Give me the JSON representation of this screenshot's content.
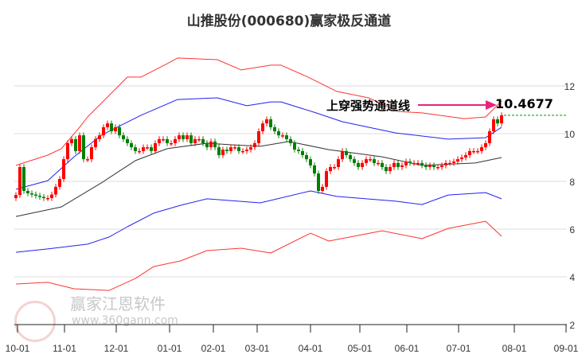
{
  "title": "山推股份(000680)赢家极反通道",
  "annotation": {
    "label": "上穿强势通道线",
    "value": "10.4677",
    "arrow_color": "#e8237a"
  },
  "watermark": {
    "brand": "赢家江恩软件",
    "url": "www.360gann.com",
    "seal": "江赢恩家"
  },
  "colors": {
    "up": "#ff0000",
    "down": "#008000",
    "outer_band": "#ff3333",
    "inner_band": "#2222ee",
    "middle": "#333333",
    "last_line": "#009900"
  },
  "chart_data": {
    "type": "candlestick",
    "title": "山推股份(000680)赢家极反通道",
    "ylim": [
      2,
      12.5
    ],
    "yticks": [
      2,
      4,
      6,
      8,
      10,
      12
    ],
    "xlim_index": [
      -0.4,
      138.4
    ],
    "xticks": [
      {
        "label": "10-01",
        "index": 0.4
      },
      {
        "label": "11-01",
        "index": 12.2
      },
      {
        "label": "12-01",
        "index": 25.2
      },
      {
        "label": "01-01",
        "index": 38.6
      },
      {
        "label": "02-01",
        "index": 49.6
      },
      {
        "label": "03-01",
        "index": 60.6
      },
      {
        "label": "04-01",
        "index": 74
      },
      {
        "label": "05-01",
        "index": 86.4
      },
      {
        "label": "06-01",
        "index": 98.2
      },
      {
        "label": "07-01",
        "index": 111.2
      },
      {
        "label": "08-01",
        "index": 125.2
      },
      {
        "label": "09-01",
        "index": 138.2
      }
    ],
    "first_open": 7.3,
    "closes": [
      7.43,
      8.6,
      7.6,
      7.5,
      7.45,
      7.4,
      7.35,
      7.3,
      7.3,
      7.45,
      7.77,
      8.1,
      8.93,
      9.6,
      9.77,
      9.27,
      9.93,
      8.93,
      8.93,
      9.43,
      9.77,
      9.93,
      10.27,
      10.43,
      10.1,
      10.27,
      9.93,
      9.77,
      9.6,
      9.43,
      9.27,
      9.27,
      9.43,
      9.43,
      9.27,
      9.6,
      9.77,
      9.77,
      9.6,
      9.6,
      9.77,
      9.93,
      9.77,
      9.93,
      9.6,
      9.77,
      9.77,
      9.6,
      9.43,
      9.67,
      9.43,
      9.1,
      9.33,
      9.27,
      9.43,
      9.43,
      9.27,
      9.27,
      9.33,
      9.43,
      9.6,
      10.1,
      10.43,
      10.6,
      10.27,
      10.1,
      9.93,
      9.93,
      9.77,
      9.6,
      9.33,
      9.27,
      9.1,
      8.93,
      8.67,
      8.33,
      7.6,
      7.77,
      8.43,
      8.6,
      8.6,
      8.93,
      9.27,
      9.1,
      8.93,
      8.77,
      8.6,
      8.77,
      8.93,
      8.93,
      8.77,
      8.77,
      8.6,
      8.43,
      8.6,
      8.77,
      8.6,
      8.67,
      8.83,
      8.77,
      8.77,
      8.77,
      8.67,
      8.6,
      8.67,
      8.6,
      8.6,
      8.67,
      8.77,
      8.77,
      8.83,
      8.93,
      9.0,
      9.1,
      9.27,
      9.27,
      9.27,
      9.43,
      9.6,
      10.1,
      10.6,
      10.43,
      10.77
    ],
    "series": [
      {
        "name": "upper_outer",
        "points": [
          [
            0,
            8.67
          ],
          [
            8,
            9.1
          ],
          [
            11.4,
            9.37
          ],
          [
            16,
            10.27
          ],
          [
            18,
            10.7
          ],
          [
            23.4,
            11.6
          ],
          [
            28,
            12.37
          ],
          [
            31.4,
            12.37
          ],
          [
            38,
            12.93
          ],
          [
            40.6,
            13.17
          ],
          [
            50.6,
            13.1
          ],
          [
            56.6,
            12.67
          ],
          [
            64,
            12.87
          ],
          [
            66.6,
            12.87
          ],
          [
            73.4,
            12.37
          ],
          [
            80.6,
            11.77
          ],
          [
            88.6,
            11.5
          ],
          [
            96,
            10.93
          ],
          [
            102,
            10.87
          ],
          [
            112.6,
            10.63
          ],
          [
            118,
            10.7
          ],
          [
            122,
            11.37
          ]
        ]
      },
      {
        "name": "upper_inner",
        "points": [
          [
            0,
            7.67
          ],
          [
            8,
            8.03
          ],
          [
            14.6,
            9.03
          ],
          [
            21.4,
            9.93
          ],
          [
            31.4,
            10.77
          ],
          [
            40.6,
            11.43
          ],
          [
            50.6,
            11.5
          ],
          [
            58,
            11.17
          ],
          [
            64,
            11.33
          ],
          [
            66.6,
            11.33
          ],
          [
            75.4,
            10.87
          ],
          [
            82,
            10.5
          ],
          [
            95.4,
            10.03
          ],
          [
            108.6,
            9.77
          ],
          [
            118,
            9.83
          ],
          [
            122,
            10.27
          ]
        ]
      },
      {
        "name": "middle",
        "points": [
          [
            0,
            6.53
          ],
          [
            11.4,
            6.93
          ],
          [
            21.4,
            7.93
          ],
          [
            30,
            8.87
          ],
          [
            38,
            9.37
          ],
          [
            48,
            9.6
          ],
          [
            54.6,
            9.53
          ],
          [
            61.4,
            9.47
          ],
          [
            68.6,
            9.67
          ],
          [
            78.6,
            9.33
          ],
          [
            92,
            9.03
          ],
          [
            102,
            8.67
          ],
          [
            115.4,
            8.77
          ],
          [
            122,
            9.0
          ]
        ]
      },
      {
        "name": "lower_inner",
        "points": [
          [
            0,
            5.03
          ],
          [
            8,
            5.17
          ],
          [
            18,
            5.37
          ],
          [
            23.4,
            5.67
          ],
          [
            28,
            6.1
          ],
          [
            34.6,
            6.67
          ],
          [
            41.4,
            7.0
          ],
          [
            48,
            7.27
          ],
          [
            61.4,
            7.1
          ],
          [
            74,
            7.6
          ],
          [
            80.6,
            7.37
          ],
          [
            95.4,
            7.17
          ],
          [
            102,
            7.03
          ],
          [
            108.6,
            7.43
          ],
          [
            118,
            7.53
          ],
          [
            122,
            7.27
          ]
        ]
      },
      {
        "name": "lower_outer",
        "points": [
          [
            0,
            3.7
          ],
          [
            8,
            3.77
          ],
          [
            14.6,
            3.5
          ],
          [
            23.4,
            3.43
          ],
          [
            30,
            3.93
          ],
          [
            34.6,
            4.43
          ],
          [
            41.4,
            4.67
          ],
          [
            48,
            5.1
          ],
          [
            56.6,
            5.2
          ],
          [
            64,
            5.0
          ],
          [
            74,
            5.83
          ],
          [
            78.6,
            5.5
          ],
          [
            92,
            5.93
          ],
          [
            102,
            5.6
          ],
          [
            108.6,
            6.03
          ],
          [
            118,
            6.33
          ],
          [
            122,
            5.7
          ]
        ]
      }
    ]
  }
}
